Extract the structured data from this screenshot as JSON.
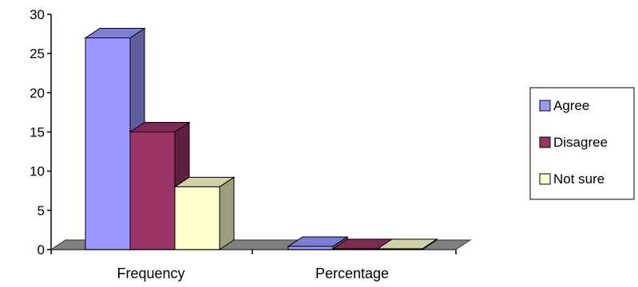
{
  "chart_data": {
    "type": "bar",
    "style": "3d-clustered-column",
    "categories": [
      "Frequency",
      "Percentage"
    ],
    "series": [
      {
        "name": "Agree",
        "values": [
          27,
          0.4
        ],
        "color": "#9999ff"
      },
      {
        "name": "Disagree",
        "values": [
          15,
          0.1
        ],
        "color": "#993366"
      },
      {
        "name": "Not sure",
        "values": [
          8,
          0.1
        ],
        "color": "#ffffcc"
      }
    ],
    "yticks": [
      "0",
      "5",
      "10",
      "15",
      "20",
      "25",
      "30"
    ],
    "ylim": [
      0,
      30
    ],
    "grid": false,
    "legend": "right",
    "floor_color": "#808080"
  }
}
